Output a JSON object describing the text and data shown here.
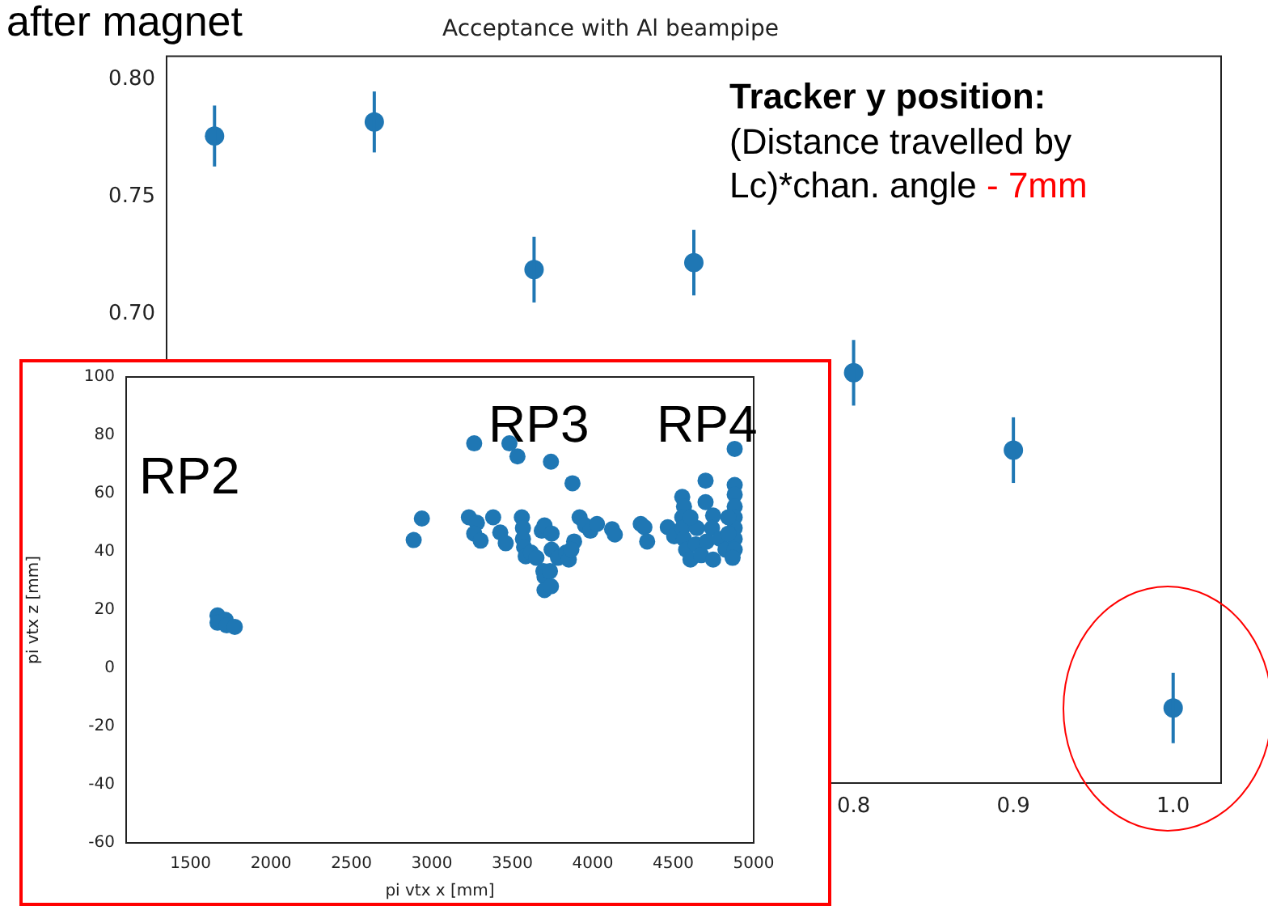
{
  "chart_data": [
    {
      "type": "scatter",
      "title": "Acceptance with Al beampipe",
      "x": [
        0.4,
        0.5,
        0.6,
        0.7,
        0.8,
        0.9,
        1.0
      ],
      "values": [
        0.776,
        0.782,
        0.719,
        0.722,
        0.675,
        0.642,
        0.532
      ],
      "errors": [
        0.013,
        0.013,
        0.014,
        0.014,
        0.014,
        0.014,
        0.015
      ],
      "color": "#1f77b4",
      "marker": "circle",
      "xlim": [
        0.37,
        1.03
      ],
      "ylim": [
        0.5,
        0.81
      ],
      "xticks": [
        0.8,
        0.9,
        {
          "value": 1.0,
          "label": "1.0"
        }
      ],
      "yticks": [
        {
          "value": 0.7,
          "label": "0.70"
        },
        0.75,
        {
          "value": 0.8,
          "label": "0.80"
        }
      ],
      "grid": false,
      "annotations": [
        "after magnet",
        "Tracker y position:",
        "(Distance travelled by Lc)*chan. angle",
        "- 7mm"
      ]
    },
    {
      "type": "scatter",
      "xlabel": "pi vtx x [mm]",
      "ylabel": "pi vtx z [mm]",
      "color": "#1f77b4",
      "marker": "circle",
      "grid": false,
      "xlim": [
        1100,
        5000
      ],
      "ylim": [
        -60,
        100
      ],
      "xticks": [
        1500,
        2000,
        2500,
        3000,
        3500,
        4000,
        4500,
        5000
      ],
      "yticks": [
        -60,
        -40,
        -20,
        0,
        20,
        40,
        60,
        80,
        100
      ],
      "x": [
        1668,
        1668,
        1718,
        1725,
        1775,
        2887,
        2938,
        3263,
        3482,
        3532,
        3740,
        3874,
        3230,
        3280,
        3263,
        3303,
        3381,
        3425,
        3459,
        3559,
        3566,
        3566,
        3573,
        3583,
        3616,
        3650,
        3683,
        3700,
        3744,
        3693,
        3700,
        3734,
        3700,
        3740,
        3744,
        3784,
        3834,
        3851,
        3884,
        3867,
        3918,
        3952,
        3985,
        4026,
        4120,
        4137,
        4298,
        4321,
        4338,
        4466,
        4506,
        4556,
        4567,
        4556,
        4556,
        4567,
        4580,
        4607,
        4640,
        4674,
        4701,
        4701,
        4748,
        4741,
        4708,
        4748,
        4791,
        4825,
        4882,
        4882,
        4882,
        4882,
        4882,
        4882,
        4882,
        4882,
        4869,
        4842,
        4842,
        4647,
        4607
      ],
      "values": [
        18.1,
        15.6,
        16.6,
        14.7,
        14.2,
        44.0,
        51.4,
        77.2,
        77.2,
        72.7,
        70.9,
        63.5,
        51.8,
        49.9,
        46.2,
        43.8,
        51.8,
        46.6,
        42.9,
        51.8,
        48.1,
        44.4,
        41.6,
        38.4,
        39.7,
        37.9,
        47.2,
        49.0,
        46.2,
        33.3,
        31.4,
        33.3,
        26.8,
        28.1,
        40.7,
        37.9,
        39.7,
        37.3,
        43.5,
        40.7,
        51.8,
        49.0,
        47.2,
        49.5,
        47.7,
        45.9,
        49.5,
        48.4,
        43.5,
        48.4,
        45.3,
        58.8,
        55.5,
        51.8,
        48.1,
        44.4,
        40.7,
        37.3,
        42.5,
        38.8,
        64.4,
        57.0,
        52.4,
        48.1,
        43.5,
        37.3,
        44.4,
        40.7,
        75.3,
        62.9,
        59.6,
        55.5,
        51.8,
        48.1,
        44.4,
        40.7,
        37.9,
        51.8,
        46.2,
        48.1,
        51.8
      ],
      "annotations": [
        "RP2",
        "RP3",
        "RP4"
      ]
    }
  ]
}
